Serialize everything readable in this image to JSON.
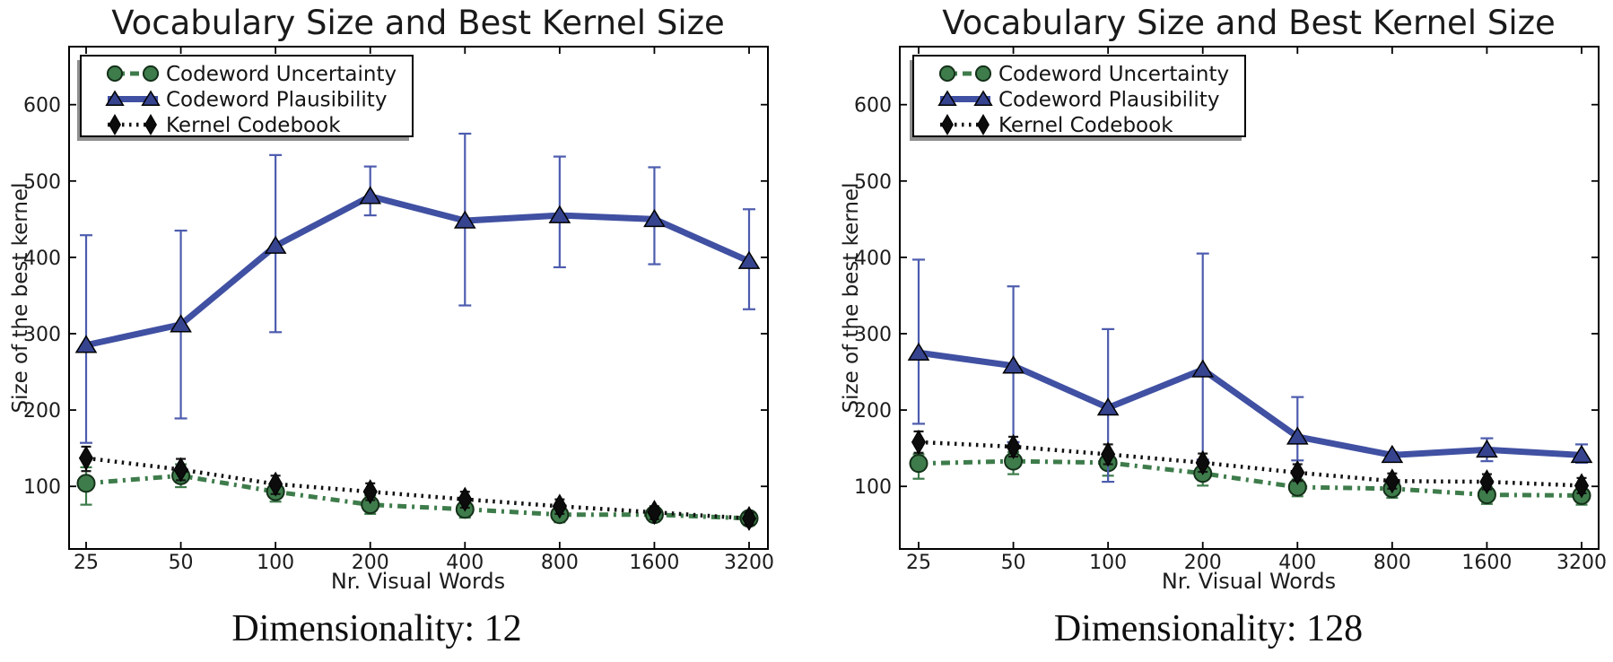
{
  "figure": {
    "background": "#ffffff"
  },
  "chart_data": [
    {
      "type": "line",
      "title": "Vocabulary Size and Best Kernel Size",
      "subtitle": "Dimensionality: 12",
      "xlabel": "Nr. Visual Words",
      "ylabel": "Size of the best kernel",
      "x_scale": "log2",
      "categories": [
        25,
        50,
        100,
        200,
        400,
        800,
        1600,
        3200
      ],
      "x_tick_labels": [
        "25",
        "50",
        "100",
        "200",
        "400",
        "800",
        "1600",
        "3200"
      ],
      "yticks": [
        100,
        200,
        300,
        400,
        500,
        600
      ],
      "ylim": [
        18,
        676
      ],
      "grid": false,
      "legend_position": "upper left",
      "series": [
        {
          "name": "Codeword Uncertainty",
          "marker": "circle",
          "linestyle": "dash-dot",
          "color": "#3E7C4B",
          "values": [
            104,
            114,
            93,
            76,
            70,
            63,
            63,
            58
          ],
          "err_low": [
            76,
            99,
            80,
            64,
            59,
            53,
            54,
            49
          ],
          "err_high": [
            125,
            129,
            105,
            88,
            81,
            71,
            72,
            66
          ]
        },
        {
          "name": "Codeword Plausibility",
          "marker": "triangle",
          "linestyle": "solid",
          "color": "#4050A2",
          "values": [
            285,
            312,
            415,
            480,
            448,
            455,
            450,
            395
          ],
          "err_low": [
            157,
            189,
            302,
            455,
            337,
            387,
            391,
            332
          ],
          "err_high": [
            429,
            435,
            534,
            519,
            562,
            532,
            518,
            463
          ]
        },
        {
          "name": "Kernel Codebook",
          "marker": "diamond",
          "linestyle": "dotted",
          "color": "#111111",
          "values": [
            137,
            122,
            103,
            93,
            83,
            74,
            66,
            58
          ],
          "err_low": [
            120,
            108,
            90,
            82,
            72,
            64,
            57,
            50
          ],
          "err_high": [
            152,
            136,
            114,
            104,
            93,
            83,
            74,
            65
          ]
        }
      ]
    },
    {
      "type": "line",
      "title": "Vocabulary Size and Best Kernel Size",
      "subtitle": "Dimensionality: 128",
      "xlabel": "Nr. Visual Words",
      "ylabel": "Size of the best kernel",
      "x_scale": "log2",
      "categories": [
        25,
        50,
        100,
        200,
        400,
        800,
        1600,
        3200
      ],
      "x_tick_labels": [
        "25",
        "50",
        "100",
        "200",
        "400",
        "800",
        "1600",
        "3200"
      ],
      "yticks": [
        100,
        200,
        300,
        400,
        500,
        600
      ],
      "ylim": [
        18,
        676
      ],
      "grid": false,
      "legend_position": "upper left",
      "series": [
        {
          "name": "Codeword Uncertainty",
          "marker": "circle",
          "linestyle": "dash-dot",
          "color": "#3E7C4B",
          "values": [
            130,
            133,
            131,
            117,
            99,
            97,
            89,
            88
          ],
          "err_low": [
            110,
            116,
            114,
            101,
            87,
            85,
            77,
            76
          ],
          "err_high": [
            142,
            145,
            143,
            129,
            109,
            107,
            99,
            98
          ]
        },
        {
          "name": "Codeword Plausibility",
          "marker": "triangle",
          "linestyle": "solid",
          "color": "#4050A2",
          "values": [
            275,
            258,
            203,
            253,
            165,
            141,
            148,
            141
          ],
          "err_low": [
            182,
            158,
            106,
            135,
            134,
            137,
            133,
            131
          ],
          "err_high": [
            397,
            362,
            306,
            405,
            217,
            145,
            163,
            155
          ]
        },
        {
          "name": "Kernel Codebook",
          "marker": "diamond",
          "linestyle": "dotted",
          "color": "#111111",
          "values": [
            158,
            152,
            142,
            131,
            118,
            107,
            106,
            101
          ],
          "err_low": [
            144,
            139,
            129,
            119,
            107,
            97,
            96,
            91
          ],
          "err_high": [
            172,
            165,
            155,
            143,
            129,
            117,
            116,
            111
          ]
        }
      ]
    }
  ]
}
